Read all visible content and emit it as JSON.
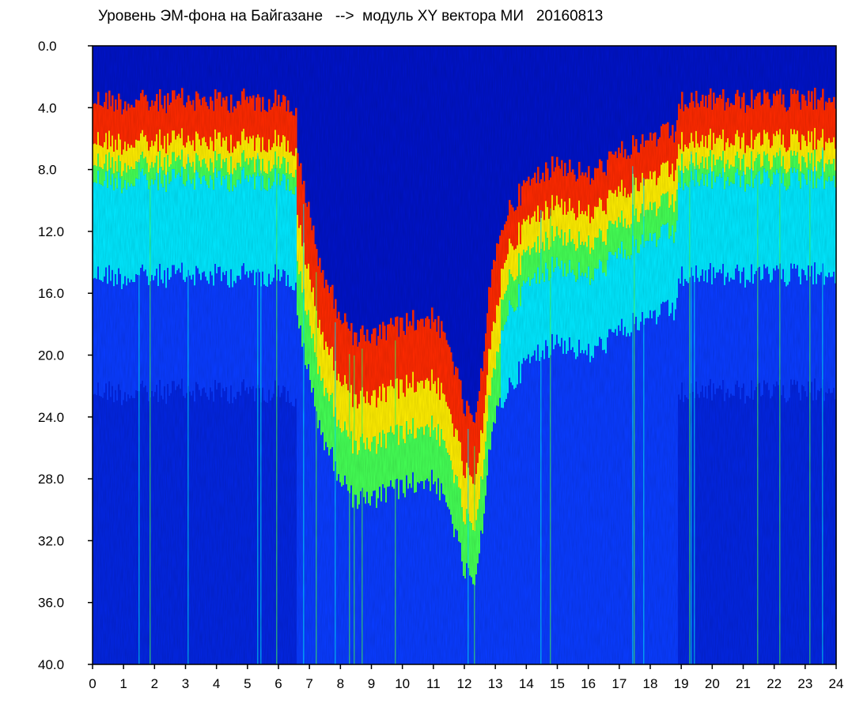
{
  "chart_data": {
    "type": "heatmap",
    "title": "Уровень ЭМ-фона на Байгазане   -->  модуль XY вектора МИ   20160813",
    "xlabel": "",
    "ylabel": "",
    "x_range": [
      0,
      24
    ],
    "y_range": [
      0.0,
      40.0
    ],
    "y_inverted": true,
    "x_ticks": [
      "0",
      "1",
      "2",
      "3",
      "4",
      "5",
      "6",
      "7",
      "8",
      "9",
      "10",
      "11",
      "12",
      "13",
      "14",
      "15",
      "16",
      "17",
      "18",
      "19",
      "20",
      "21",
      "22",
      "23",
      "24"
    ],
    "y_ticks": [
      "0.0",
      "4.0",
      "8.0",
      "12.0",
      "16.0",
      "20.0",
      "24.0",
      "28.0",
      "32.0",
      "36.0",
      "40.0"
    ],
    "colormap": [
      "#ffffff",
      "#ff2a00",
      "#ffee00",
      "#44ff55",
      "#00e8ff",
      "#0a3cff",
      "#0014c8"
    ],
    "upper_edge_profile": {
      "hours": [
        0,
        0.5,
        1,
        2,
        3,
        4,
        5,
        6,
        6.5,
        6.9,
        7.3,
        7.8,
        8.3,
        9,
        10,
        11,
        11.6,
        12,
        12.4,
        12.8,
        13.3,
        14,
        15,
        16,
        17,
        18,
        19,
        20,
        21,
        22,
        23,
        24
      ],
      "level": [
        8.3,
        8.3,
        8.5,
        8.4,
        8.3,
        8.4,
        8.3,
        8.3,
        8.8,
        12.5,
        16.5,
        19.0,
        21.0,
        21.5,
        20.5,
        20.0,
        22.5,
        26.0,
        27.0,
        18.0,
        14.0,
        12.0,
        10.5,
        11.5,
        10.0,
        9.0,
        8.5,
        8.3,
        8.4,
        8.4,
        8.2,
        8.2
      ]
    }
  }
}
